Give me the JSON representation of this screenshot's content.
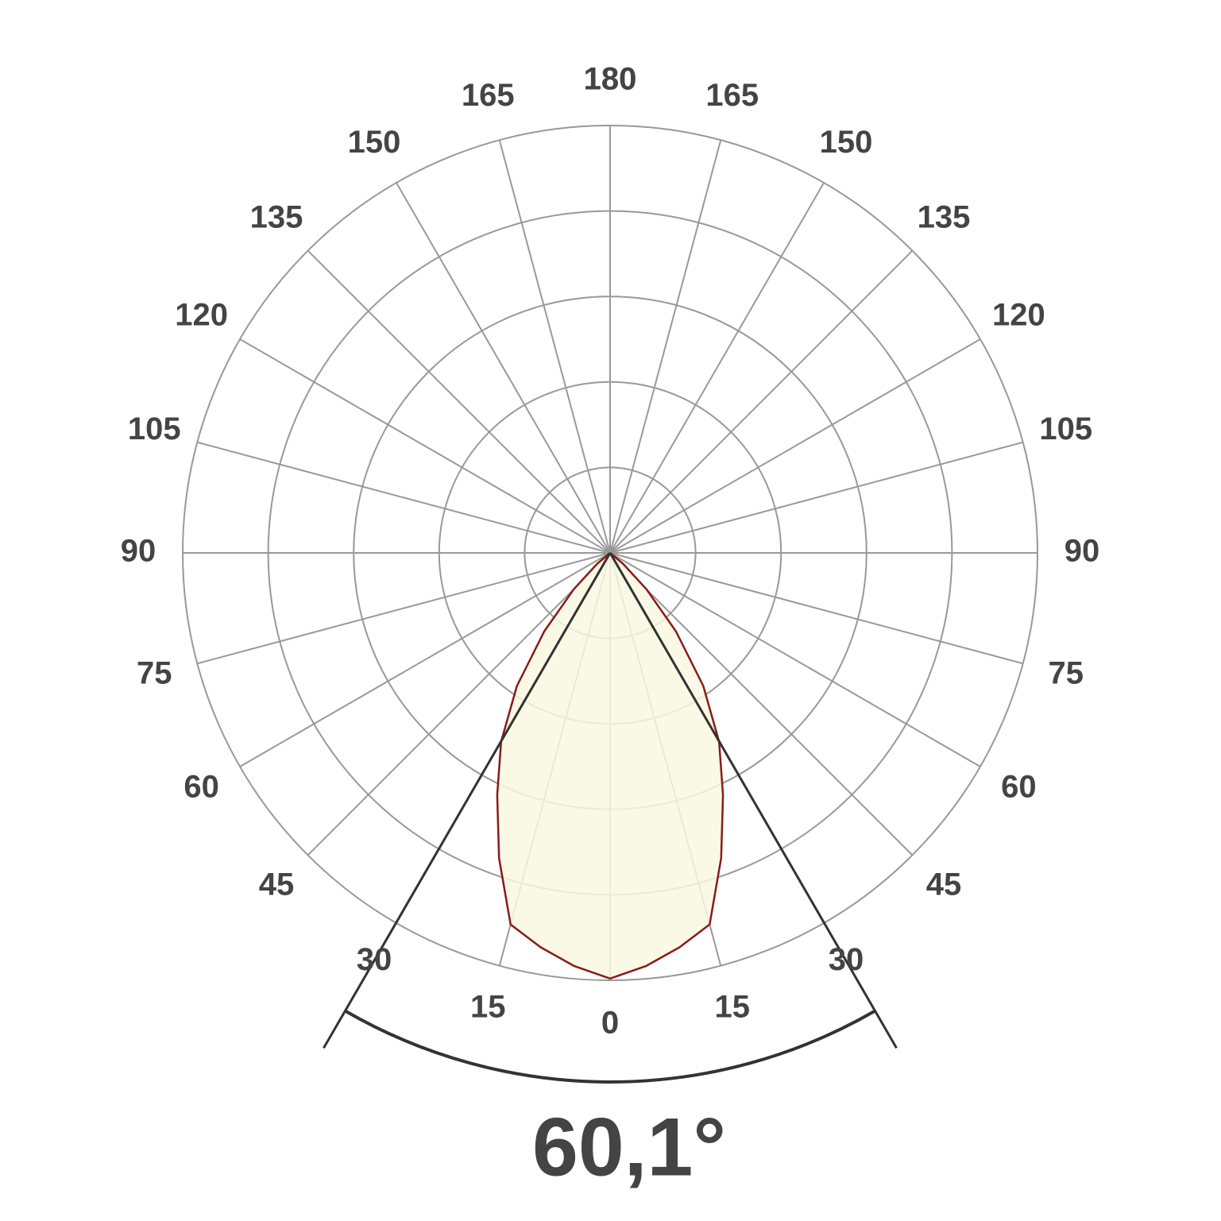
{
  "chart_data": {
    "type": "polar",
    "thetaticks": [
      0,
      15,
      30,
      45,
      60,
      75,
      90,
      105,
      120,
      135,
      150,
      165,
      180
    ],
    "rlim": [
      0,
      100
    ],
    "rticks": [
      20,
      40,
      60,
      80,
      100
    ],
    "grid": true,
    "series": [
      {
        "color": "#8b1a1a",
        "fill": "#f8f8e2",
        "theta": [
          0,
          5,
          10,
          15,
          20,
          25,
          30,
          35,
          40,
          45,
          50,
          55
        ],
        "values": [
          99.6,
          97,
          93.7,
          90,
          76,
          62.5,
          51,
          38,
          24,
          12,
          4,
          0
        ]
      }
    ],
    "beam_angle": {
      "value": 60.1,
      "label": "60,1°"
    }
  }
}
